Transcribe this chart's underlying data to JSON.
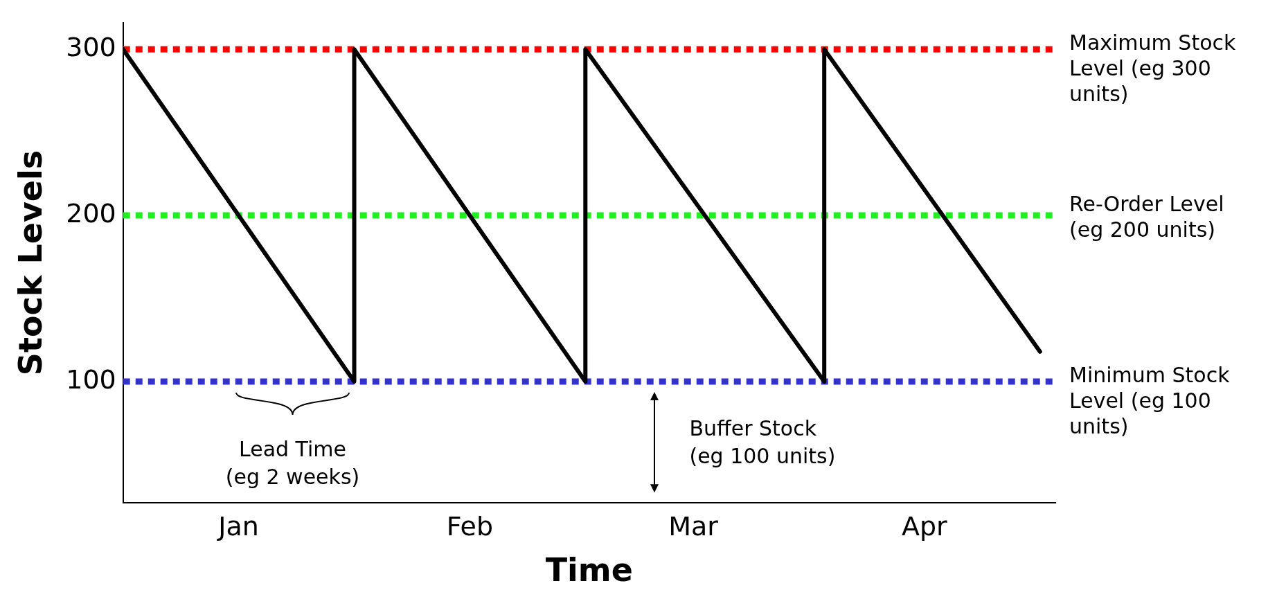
{
  "chart_data": {
    "type": "line",
    "xlabel": "Time",
    "ylabel": "Stock Levels",
    "x": [
      "--01-01",
      "--01-31",
      "--01-31",
      "--03-02",
      "--03-02",
      "--04-02",
      "--04-02",
      "--04-30"
    ],
    "series": [
      {
        "color": "#000000",
        "values": [
          300,
          100,
          300,
          100,
          300,
          100,
          300,
          118
        ]
      }
    ],
    "xlim": [
      "--01-01",
      "--05-02"
    ],
    "xticks": [
      {
        "value": "--01-16",
        "label": "Jan"
      },
      {
        "value": "--02-15",
        "label": "Feb"
      },
      {
        "value": "--03-16",
        "label": "Mar"
      },
      {
        "value": "--04-15",
        "label": "Apr"
      }
    ],
    "ylim": [
      27,
      316
    ],
    "yticks": [
      100,
      200,
      300
    ],
    "ref_lines": [
      {
        "axis": "y",
        "value": 300,
        "label": "Maximum Stock Level (eg 300 units)",
        "color": "#ff0000",
        "line_style": "dotted"
      },
      {
        "axis": "y",
        "value": 200,
        "label": "Re-Order Level (eg 200 units)",
        "color": "#22ee22",
        "line_style": "dotted"
      },
      {
        "axis": "y",
        "value": 100,
        "label": "Minimum Stock Level (eg 100 units)",
        "color": "#3333cc",
        "line_style": "dotted"
      }
    ],
    "annotations": [
      {
        "text": "Lead Time (eg 2 weeks)",
        "x": "--01-23",
        "y": 100
      },
      {
        "text": "Buffer Stock (eg 100 units)",
        "x": "--03-11",
        "y": 100
      }
    ],
    "legend": false,
    "grid": false
  }
}
